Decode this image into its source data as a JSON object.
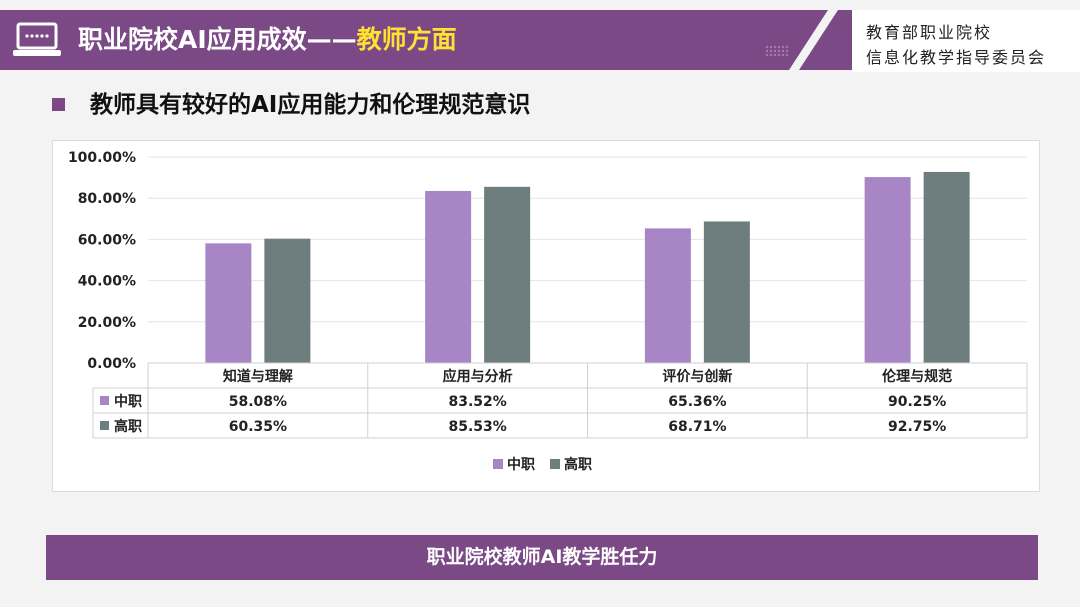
{
  "header": {
    "title_main": "职业院校AI应用成效——",
    "title_highlight": "教师方面",
    "org_line1": "教育部职业院校",
    "org_line2": "信息化教学指导委员会"
  },
  "subtitle": "教师具有较好的AI应用能力和伦理规范意识",
  "footer": "职业院校教师AI教学胜任力",
  "colors": {
    "brand": "#7b4a86",
    "highlight": "#ffe033",
    "series_zhongzhi": "#a886c6",
    "series_gaozhi": "#6e7e7e"
  },
  "chart_data": {
    "type": "bar",
    "categories": [
      "知道与理解",
      "应用与分析",
      "评价与创新",
      "伦理与规范"
    ],
    "series": [
      {
        "name": "中职",
        "values": [
          58.08,
          83.52,
          65.36,
          90.25
        ],
        "labels": [
          "58.08%",
          "83.52%",
          "65.36%",
          "90.25%"
        ]
      },
      {
        "name": "高职",
        "values": [
          60.35,
          85.53,
          68.71,
          92.75
        ],
        "labels": [
          "60.35%",
          "85.53%",
          "68.71%",
          "92.75%"
        ]
      }
    ],
    "y_ticks": [
      "0.00%",
      "20.00%",
      "40.00%",
      "60.00%",
      "80.00%",
      "100.00%"
    ],
    "ylim": [
      0,
      100
    ],
    "grid": true,
    "data_table": true,
    "legend": "bottom-center"
  }
}
